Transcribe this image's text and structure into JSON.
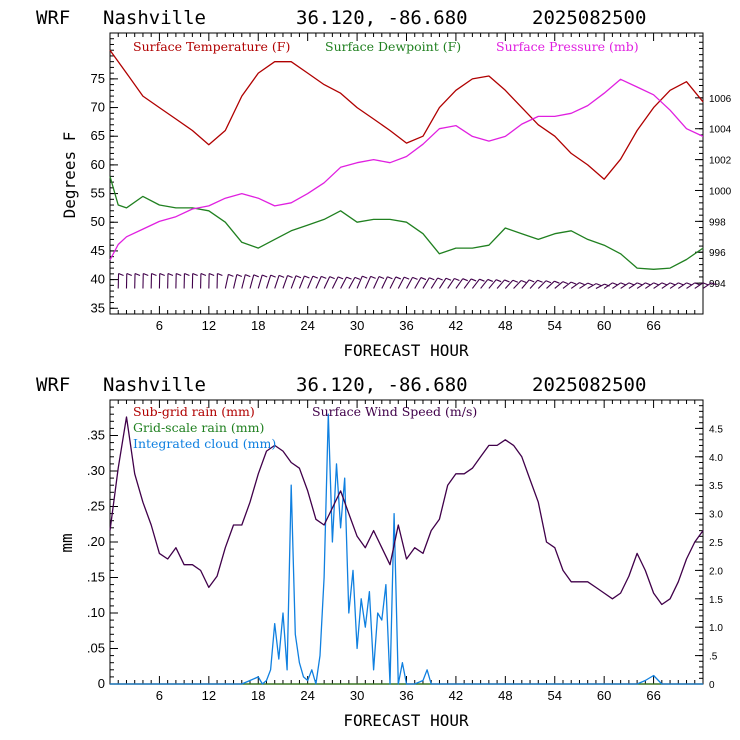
{
  "chart_data": [
    {
      "type": "line",
      "header": {
        "model": "WRF",
        "location": "Nashville",
        "coords": "36.120, -86.680",
        "date": "2025082500"
      },
      "xlabel": "FORECAST HOUR",
      "ylabel": "Degrees F",
      "xlim": [
        0,
        72
      ],
      "xticks": [
        6,
        12,
        18,
        24,
        30,
        36,
        42,
        48,
        54,
        60,
        66
      ],
      "ylim": [
        34,
        83
      ],
      "yticks": [
        35,
        40,
        45,
        50,
        55,
        60,
        65,
        70,
        75
      ],
      "y2lim": [
        992.0,
        1010.2
      ],
      "y2ticks": [
        994,
        996,
        998,
        1000,
        1002,
        1004,
        1006
      ],
      "legend": "top",
      "series": [
        {
          "name": "Surface Temperature (F)",
          "axis": "left",
          "color": "#b00000",
          "x": [
            0,
            2,
            4,
            6,
            8,
            10,
            12,
            14,
            16,
            18,
            20,
            22,
            24,
            26,
            28,
            30,
            32,
            34,
            36,
            38,
            40,
            42,
            44,
            46,
            48,
            50,
            52,
            54,
            56,
            58,
            60,
            62,
            64,
            66,
            68,
            70,
            72
          ],
          "values": [
            80,
            76,
            72,
            70,
            68,
            66,
            63.5,
            66,
            72,
            76,
            78,
            78,
            76,
            74,
            72.5,
            70,
            68,
            66,
            63.8,
            65,
            70,
            73,
            75,
            75.5,
            73,
            70,
            67,
            65,
            62,
            60,
            57.5,
            61,
            66,
            70,
            73,
            74.5,
            71
          ]
        },
        {
          "name": "Surface Dewpoint (F)",
          "axis": "left",
          "color": "#208020",
          "x": [
            0,
            1,
            2,
            4,
            6,
            8,
            10,
            12,
            14,
            16,
            18,
            20,
            22,
            24,
            26,
            28,
            30,
            32,
            34,
            36,
            38,
            40,
            42,
            44,
            46,
            48,
            50,
            52,
            54,
            56,
            58,
            60,
            62,
            64,
            66,
            68,
            70,
            72
          ],
          "values": [
            58,
            53,
            52.5,
            54.5,
            53,
            52.5,
            52.5,
            52,
            50,
            46.5,
            45.5,
            47,
            48.5,
            49.5,
            50.5,
            52,
            50,
            50.5,
            50.5,
            50,
            48,
            44.5,
            45.5,
            45.5,
            46,
            49,
            48,
            47,
            48,
            48.5,
            47,
            46,
            44.5,
            42,
            41.8,
            42,
            43.5,
            45.5
          ]
        },
        {
          "name": "Surface Pressure (mb)",
          "axis": "right",
          "color": "#e020e0",
          "x": [
            0,
            1,
            2,
            4,
            6,
            8,
            10,
            12,
            14,
            16,
            18,
            20,
            22,
            24,
            26,
            28,
            30,
            32,
            34,
            36,
            38,
            40,
            42,
            44,
            46,
            48,
            50,
            52,
            54,
            56,
            58,
            60,
            62,
            64,
            66,
            68,
            70,
            72
          ],
          "values": [
            995.5,
            996.5,
            997,
            997.5,
            998,
            998.3,
            998.8,
            999,
            999.5,
            999.8,
            999.5,
            999,
            999.2,
            999.8,
            1000.5,
            1001.5,
            1001.8,
            1002,
            1001.8,
            1002.2,
            1003,
            1004,
            1004.2,
            1003.5,
            1003.2,
            1003.5,
            1004.3,
            1004.8,
            1004.8,
            1005,
            1005.5,
            1006.3,
            1007.2,
            1006.7,
            1006.2,
            1005.2,
            1004,
            1003.5
          ]
        }
      ],
      "wind_barbs": {
        "y_level": 39.5,
        "hours_start": 1,
        "hours_end": 72,
        "step": 1
      }
    },
    {
      "type": "line",
      "header": {
        "model": "WRF",
        "location": "Nashville",
        "coords": "36.120, -86.680",
        "date": "2025082500"
      },
      "xlabel": "FORECAST HOUR",
      "ylabel": "mm",
      "xlim": [
        0,
        72
      ],
      "xticks": [
        6,
        12,
        18,
        24,
        30,
        36,
        42,
        48,
        54,
        60,
        66
      ],
      "ylim": [
        0,
        0.4
      ],
      "yticks": [
        0,
        0.05,
        0.1,
        0.15,
        0.2,
        0.25,
        0.3,
        0.35
      ],
      "ytick_labels": [
        "0",
        ".05",
        ".10",
        ".15",
        ".20",
        ".25",
        ".30",
        ".35"
      ],
      "y2lim": [
        0,
        5.0
      ],
      "y2ticks": [
        0,
        0.5,
        1.0,
        1.5,
        2.0,
        2.5,
        3.0,
        3.5,
        4.0,
        4.5
      ],
      "y2tick_labels": [
        "0",
        ".5",
        "1.0",
        "1.5",
        "2.0",
        "2.5",
        "3.0",
        "3.5",
        "4.0",
        "4.5"
      ],
      "legend": "top-left",
      "series": [
        {
          "name": "Sub-grid rain (mm)",
          "axis": "left",
          "color": "#b00000",
          "x": [
            0,
            72
          ],
          "values": [
            0,
            0
          ]
        },
        {
          "name": "Grid-scale rain (mm)",
          "axis": "left",
          "color": "#208020",
          "x": [
            0,
            72
          ],
          "values": [
            0,
            0
          ]
        },
        {
          "name": "Integrated cloud (mm)",
          "axis": "left",
          "color": "#1080e0",
          "x": [
            0,
            16,
            17,
            18,
            18.5,
            19,
            19.5,
            20,
            20.5,
            21,
            21.5,
            22,
            22.5,
            23,
            23.5,
            24,
            24.5,
            25,
            25.5,
            26,
            26.5,
            27,
            27.5,
            28,
            28.5,
            29,
            29.5,
            30,
            30.5,
            31,
            31.5,
            32,
            32.5,
            33,
            33.5,
            34,
            34.5,
            35,
            35.5,
            36,
            37,
            38,
            38.5,
            39,
            40,
            64,
            65,
            66,
            67,
            72
          ],
          "values": [
            0,
            0,
            0.005,
            0.01,
            0,
            0.005,
            0.02,
            0.085,
            0.035,
            0.1,
            0.02,
            0.28,
            0.07,
            0.03,
            0.01,
            0.005,
            0.02,
            0,
            0.04,
            0.15,
            0.38,
            0.2,
            0.31,
            0.22,
            0.29,
            0.1,
            0.16,
            0.05,
            0.12,
            0.08,
            0.13,
            0.02,
            0.1,
            0.09,
            0.14,
            0.0,
            0.24,
            0.0,
            0.03,
            0,
            0,
            0.005,
            0.02,
            0,
            0,
            0,
            0.005,
            0.012,
            0,
            0
          ]
        },
        {
          "name": "Surface Wind Speed (m/s)",
          "axis": "right",
          "color": "#40004a",
          "x": [
            0,
            1,
            2,
            3,
            4,
            5,
            6,
            7,
            8,
            9,
            10,
            11,
            12,
            13,
            14,
            15,
            16,
            17,
            18,
            19,
            20,
            21,
            22,
            23,
            24,
            25,
            26,
            27,
            28,
            29,
            30,
            31,
            32,
            33,
            34,
            35,
            36,
            37,
            38,
            39,
            40,
            41,
            42,
            43,
            44,
            45,
            46,
            47,
            48,
            49,
            50,
            51,
            52,
            53,
            54,
            55,
            56,
            57,
            58,
            59,
            60,
            61,
            62,
            63,
            64,
            65,
            66,
            67,
            68,
            69,
            70,
            71,
            72
          ],
          "values": [
            2.7,
            3.8,
            4.7,
            3.7,
            3.2,
            2.8,
            2.3,
            2.2,
            2.4,
            2.1,
            2.1,
            2.0,
            1.7,
            1.9,
            2.4,
            2.8,
            2.8,
            3.2,
            3.7,
            4.1,
            4.2,
            4.1,
            3.9,
            3.8,
            3.4,
            2.9,
            2.8,
            3.1,
            3.4,
            3.0,
            2.6,
            2.4,
            2.7,
            2.4,
            2.1,
            2.8,
            2.2,
            2.4,
            2.3,
            2.7,
            2.9,
            3.5,
            3.7,
            3.7,
            3.8,
            4.0,
            4.2,
            4.2,
            4.3,
            4.2,
            4.0,
            3.6,
            3.2,
            2.5,
            2.4,
            2.0,
            1.8,
            1.8,
            1.8,
            1.7,
            1.6,
            1.5,
            1.6,
            1.9,
            2.3,
            2.0,
            1.6,
            1.4,
            1.5,
            1.8,
            2.2,
            2.5,
            2.7
          ]
        }
      ]
    }
  ]
}
